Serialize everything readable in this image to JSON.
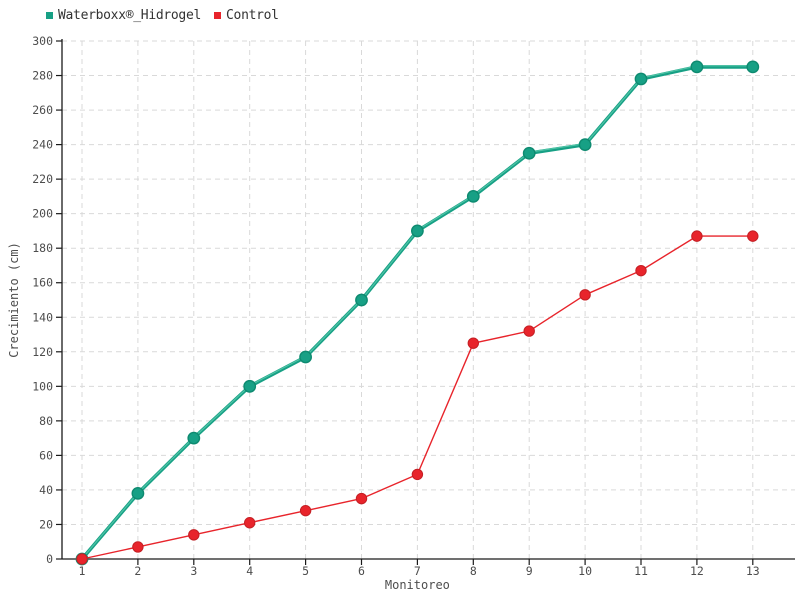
{
  "legend": {
    "items": [
      {
        "label": "Waterboxx®_Hidrogel",
        "color": "#17a085"
      },
      {
        "label": "Control",
        "color": "#e8242b"
      }
    ]
  },
  "chart_data": {
    "type": "line",
    "title": "",
    "xlabel": "Monitoreo",
    "ylabel": "Crecimiento (cm)",
    "x": [
      1,
      2,
      3,
      4,
      5,
      6,
      7,
      8,
      9,
      10,
      11,
      12,
      13
    ],
    "series": [
      {
        "name": "Waterboxx®_Hidrogel",
        "color": "#17a085",
        "line_highlight_color": "#4fc4a6",
        "marker_stroke": "#0e8a70",
        "line_width": 3.6,
        "marker_radius": 5.7,
        "values": [
          0,
          38,
          70,
          100,
          117,
          150,
          190,
          210,
          235,
          240,
          278,
          285,
          285
        ]
      },
      {
        "name": "Control",
        "color": "#e8242b",
        "marker_stroke": "#c41f24",
        "line_width": 1.4,
        "marker_radius": 5.2,
        "values": [
          0,
          7,
          14,
          21,
          28,
          35,
          49,
          125,
          132,
          153,
          167,
          187,
          187
        ]
      }
    ],
    "ylim": [
      0,
      300
    ],
    "ytick_step": 20,
    "ytick_labels": [
      "0",
      "20",
      "40",
      "60",
      "80",
      "100",
      "120",
      "140",
      "160",
      "180",
      "200",
      "220",
      "240",
      "260",
      "280",
      "300"
    ],
    "xtick_labels": [
      "1",
      "2",
      "3",
      "4",
      "5",
      "6",
      "7",
      "8",
      "9",
      "10",
      "11",
      "12",
      "13"
    ],
    "grid": true,
    "grid_color": "#d9d9d9",
    "axis_color": "#1a1a1a",
    "tick_label_color": "#4d4d4d",
    "legend_position": "top-left"
  }
}
